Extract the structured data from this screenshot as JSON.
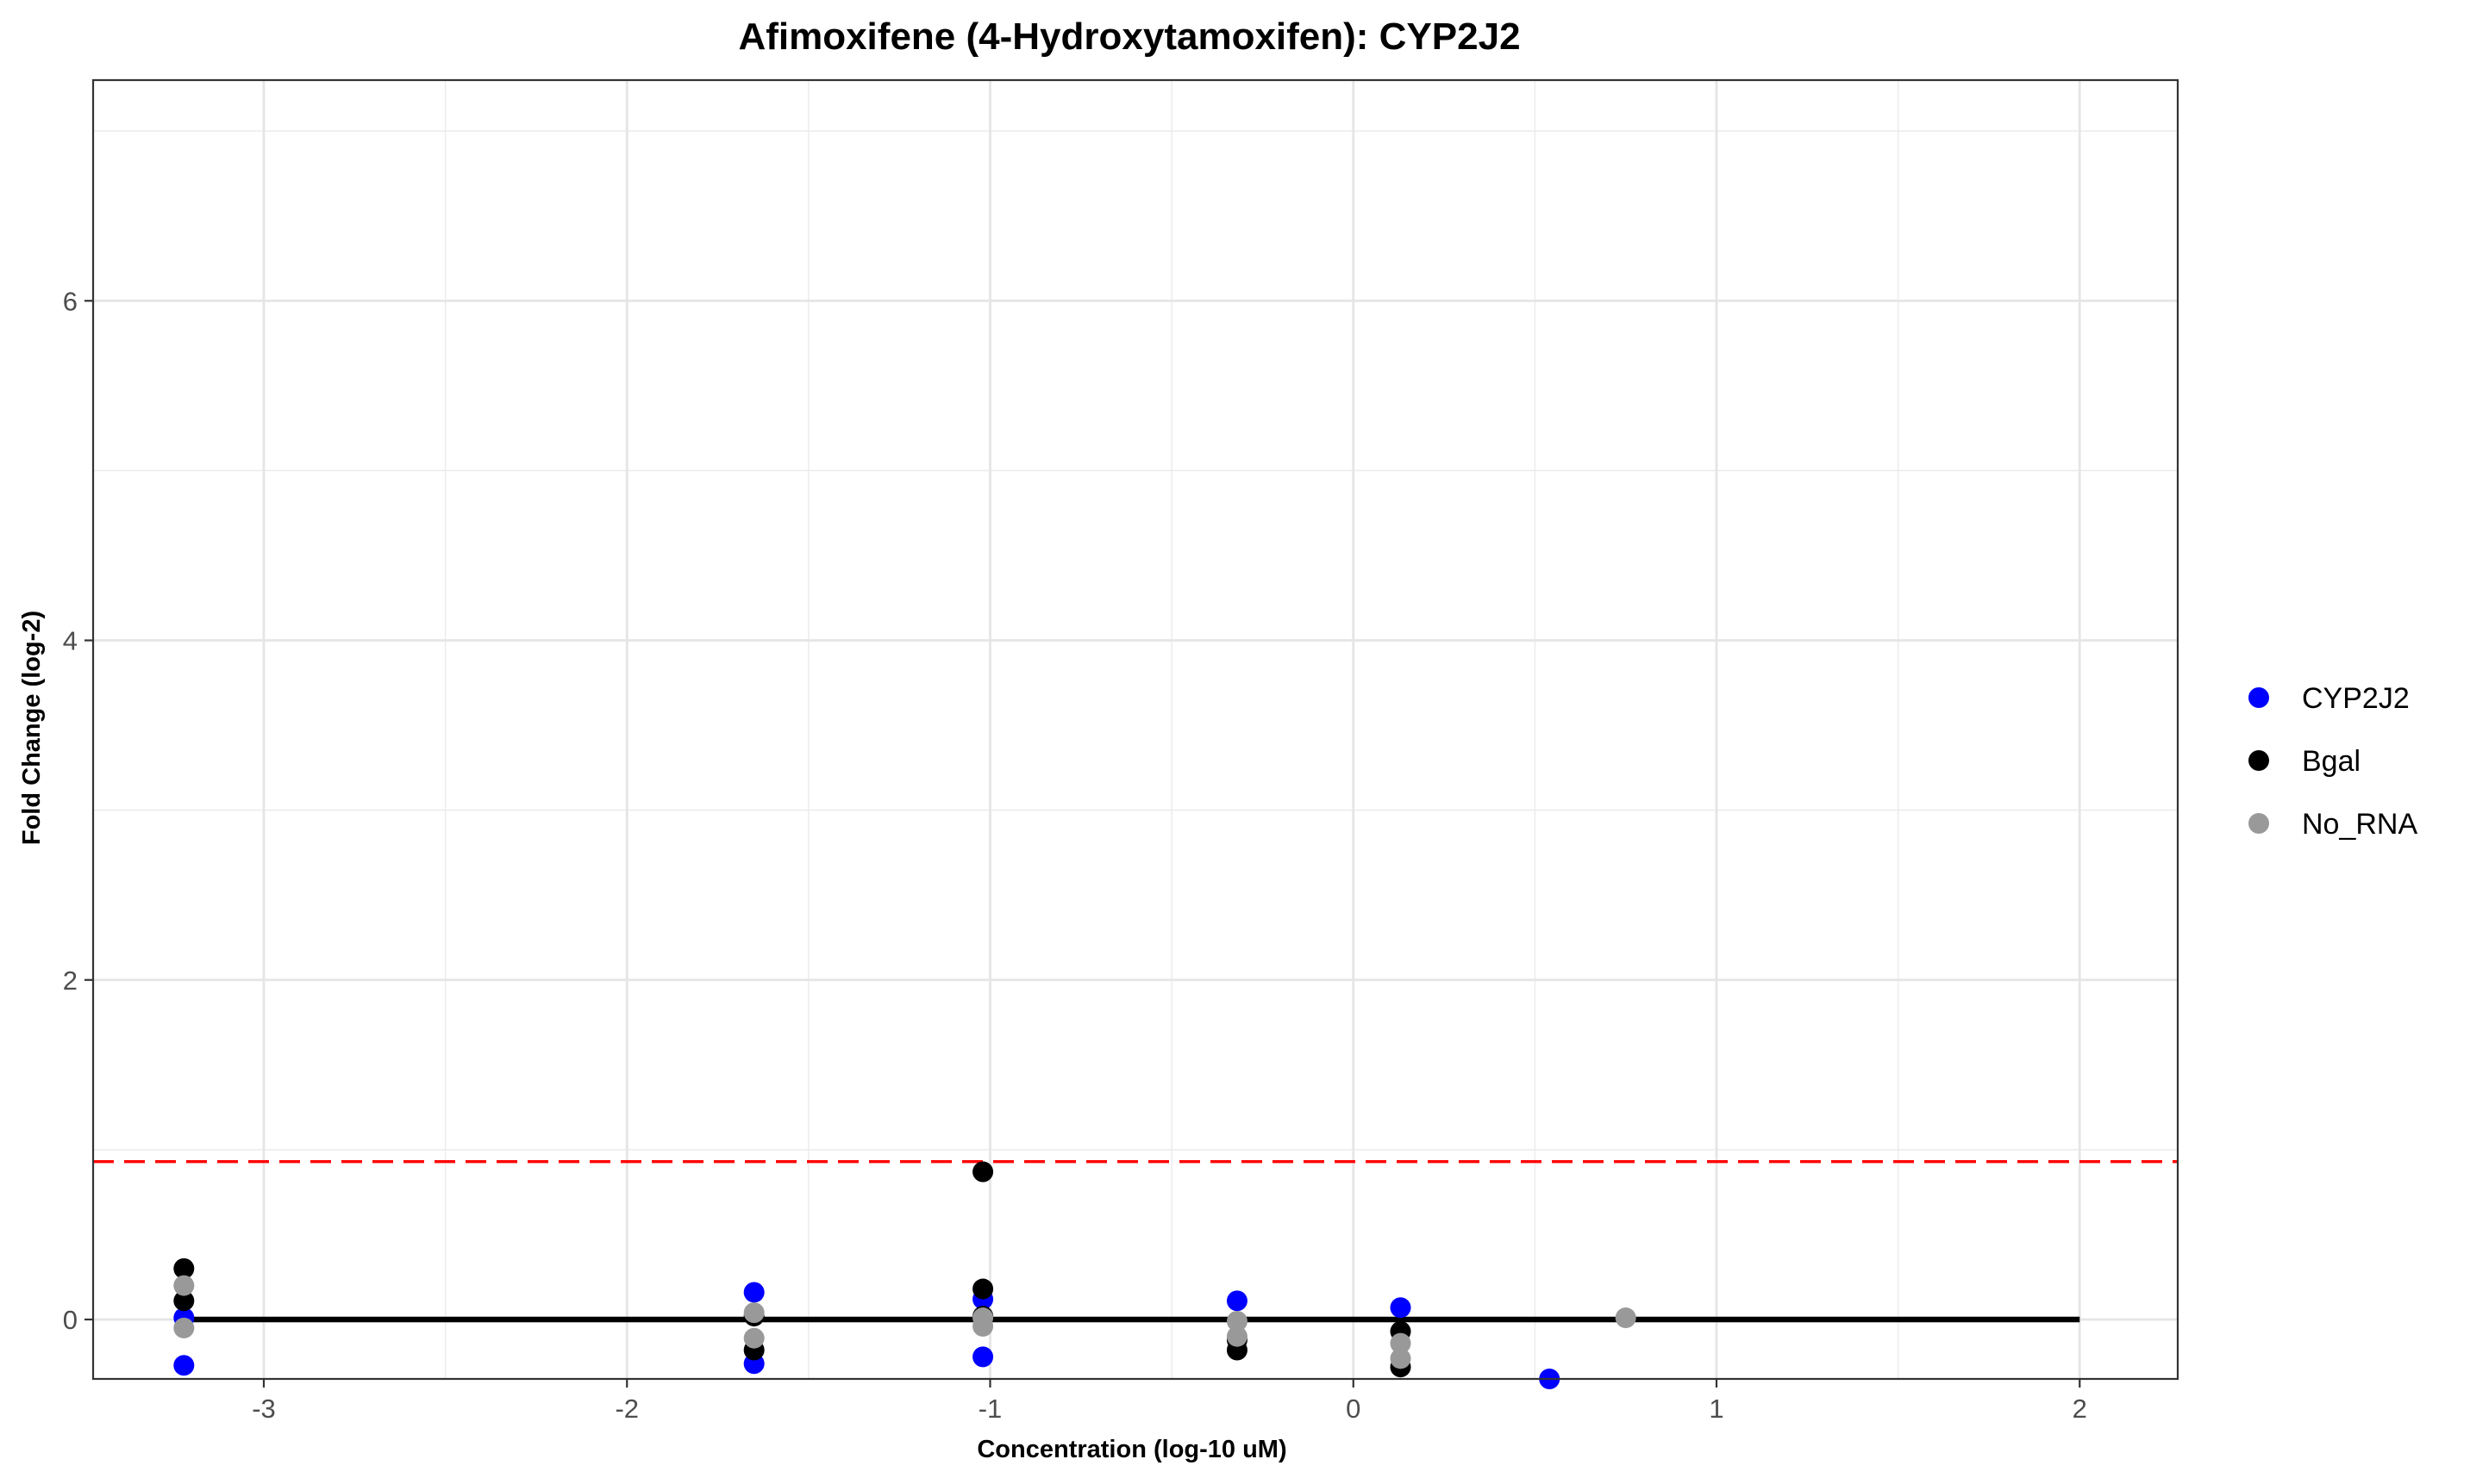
{
  "chart_data": {
    "type": "scatter",
    "title": "Afimoxifene (4-Hydroxytamoxifen): CYP2J2",
    "xlabel": "Concentration (log-10 uM)",
    "ylabel": "Fold Change (log-2)",
    "xlim": [
      -3.47,
      2.27
    ],
    "ylim": [
      -0.35,
      7.3
    ],
    "x_ticks": [
      -3,
      -2,
      -1,
      0,
      1,
      2
    ],
    "x_tick_labels": [
      "-3",
      "-2",
      "-1",
      "0",
      "1",
      "2"
    ],
    "y_ticks": [
      0,
      2,
      4,
      6
    ],
    "y_tick_labels": [
      "0",
      "2",
      "4",
      "6"
    ],
    "grid": true,
    "legend_position": "right",
    "threshold_line": {
      "y": 0.93,
      "color": "#ff0000",
      "style": "dashed"
    },
    "fit_line": {
      "x": [
        -3.22,
        2.0
      ],
      "y": [
        0,
        0
      ],
      "color": "#000000"
    },
    "series": [
      {
        "name": "CYP2J2",
        "color": "#0000ff",
        "points": [
          {
            "x": -3.22,
            "y": -0.27
          },
          {
            "x": -3.22,
            "y": 0.01
          },
          {
            "x": -1.65,
            "y": 0.16
          },
          {
            "x": -1.65,
            "y": -0.26
          },
          {
            "x": -1.02,
            "y": 0.12
          },
          {
            "x": -1.02,
            "y": -0.22
          },
          {
            "x": -0.32,
            "y": 0.11
          },
          {
            "x": 0.13,
            "y": 0.07
          },
          {
            "x": 0.54,
            "y": -0.35
          }
        ]
      },
      {
        "name": "Bgal",
        "color": "#000000",
        "points": [
          {
            "x": -3.22,
            "y": 0.3
          },
          {
            "x": -3.22,
            "y": 0.11
          },
          {
            "x": -1.65,
            "y": -0.18
          },
          {
            "x": -1.65,
            "y": 0.02
          },
          {
            "x": -1.02,
            "y": 0.87
          },
          {
            "x": -1.02,
            "y": 0.18
          },
          {
            "x": -1.02,
            "y": 0.02
          },
          {
            "x": -0.32,
            "y": -0.18
          },
          {
            "x": -0.32,
            "y": -0.12
          },
          {
            "x": 0.13,
            "y": -0.28
          },
          {
            "x": 0.13,
            "y": -0.07
          }
        ]
      },
      {
        "name": "No_RNA",
        "color": "#999999",
        "points": [
          {
            "x": -3.22,
            "y": 0.2
          },
          {
            "x": -3.22,
            "y": -0.05
          },
          {
            "x": -1.65,
            "y": 0.04
          },
          {
            "x": -1.65,
            "y": -0.11
          },
          {
            "x": -1.02,
            "y": 0.01
          },
          {
            "x": -1.02,
            "y": -0.04
          },
          {
            "x": -0.32,
            "y": -0.01
          },
          {
            "x": -0.32,
            "y": -0.1
          },
          {
            "x": 0.13,
            "y": -0.14
          },
          {
            "x": 0.13,
            "y": -0.23
          },
          {
            "x": 0.75,
            "y": 0.01
          }
        ]
      }
    ]
  }
}
